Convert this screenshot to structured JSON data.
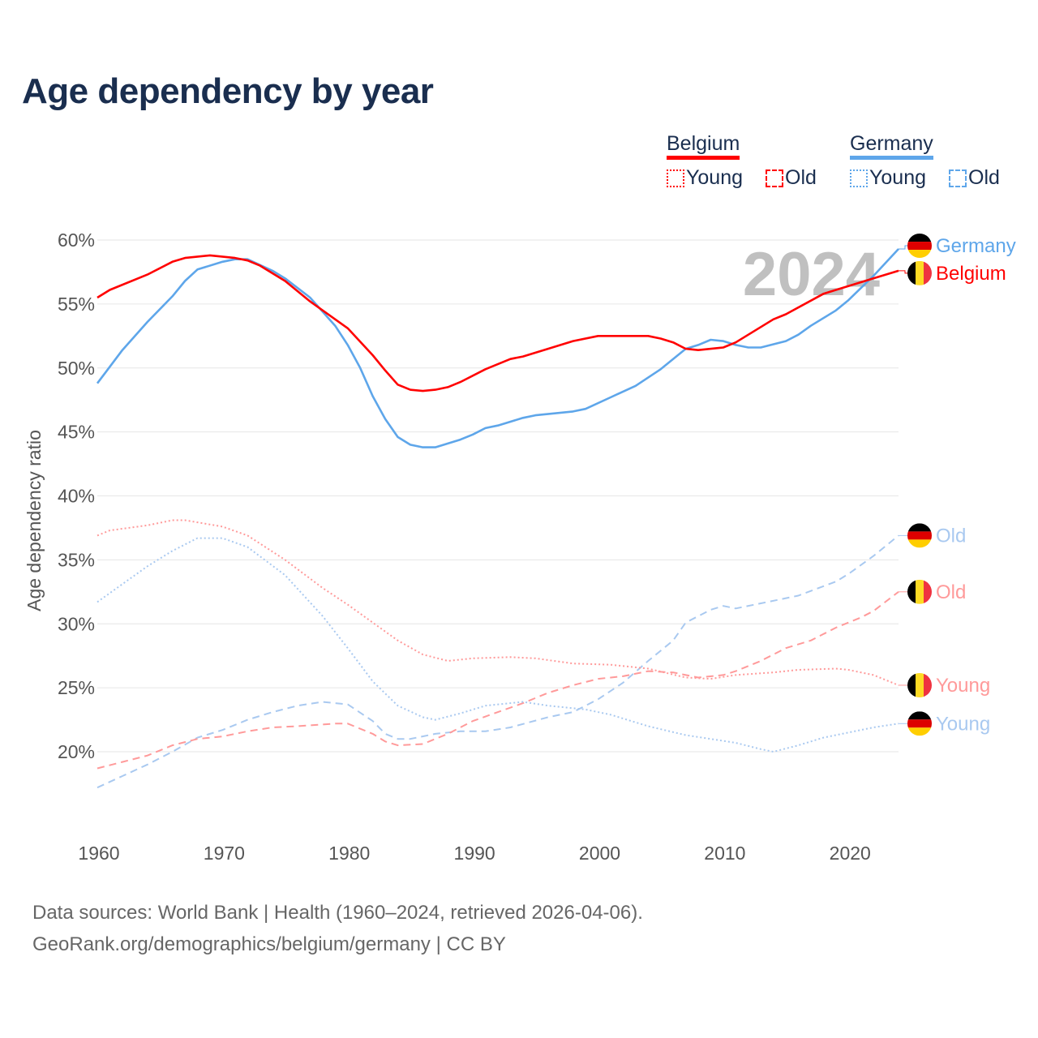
{
  "title": "Age dependency by year",
  "legend": {
    "groups": [
      {
        "name": "Belgium",
        "color": "#ff0000",
        "items": [
          {
            "label": "Young",
            "style": "dotted"
          },
          {
            "label": "Old",
            "style": "dashed"
          }
        ]
      },
      {
        "name": "Germany",
        "color": "#5ea6ea",
        "items": [
          {
            "label": "Young",
            "style": "dotted"
          },
          {
            "label": "Old",
            "style": "dashed"
          }
        ]
      }
    ]
  },
  "year_watermark": "2024",
  "footer": {
    "line1": "Data sources: World Bank | Health (1960–2024, retrieved 2026-04-06).",
    "line2": "GeoRank.org/demographics/belgium/germany | CC BY"
  },
  "chart_data": {
    "type": "line",
    "title": "Age dependency by year",
    "xlabel": "",
    "ylabel": "Age dependency ratio",
    "xlim": [
      1960,
      2024
    ],
    "ylim": [
      15,
      60
    ],
    "xticks": [
      1960,
      1970,
      1980,
      1990,
      2000,
      2010,
      2020
    ],
    "yticks": [
      20,
      25,
      30,
      35,
      40,
      45,
      50,
      55,
      60
    ],
    "ytick_suffix": "%",
    "grid": true,
    "series": [
      {
        "name": "Germany",
        "label": "Germany",
        "country": "de",
        "color": "#5ea6ea",
        "style": "solid",
        "points": [
          [
            1960,
            48.8
          ],
          [
            1962,
            51.4
          ],
          [
            1964,
            53.6
          ],
          [
            1966,
            55.6
          ],
          [
            1967,
            56.8
          ],
          [
            1968,
            57.7
          ],
          [
            1970,
            58.3
          ],
          [
            1971,
            58.5
          ],
          [
            1972,
            58.5
          ],
          [
            1974,
            57.6
          ],
          [
            1975,
            57.0
          ],
          [
            1977,
            55.5
          ],
          [
            1979,
            53.3
          ],
          [
            1980,
            51.8
          ],
          [
            1981,
            50.0
          ],
          [
            1982,
            47.8
          ],
          [
            1983,
            46.0
          ],
          [
            1984,
            44.6
          ],
          [
            1985,
            44.0
          ],
          [
            1986,
            43.8
          ],
          [
            1987,
            43.8
          ],
          [
            1989,
            44.4
          ],
          [
            1990,
            44.8
          ],
          [
            1991,
            45.3
          ],
          [
            1992,
            45.5
          ],
          [
            1994,
            46.1
          ],
          [
            1995,
            46.3
          ],
          [
            1998,
            46.6
          ],
          [
            1999,
            46.8
          ],
          [
            2001,
            47.7
          ],
          [
            2003,
            48.6
          ],
          [
            2005,
            49.9
          ],
          [
            2007,
            51.5
          ],
          [
            2008,
            51.8
          ],
          [
            2009,
            52.2
          ],
          [
            2010,
            52.1
          ],
          [
            2011,
            51.8
          ],
          [
            2012,
            51.6
          ],
          [
            2013,
            51.6
          ],
          [
            2015,
            52.1
          ],
          [
            2016,
            52.6
          ],
          [
            2017,
            53.3
          ],
          [
            2019,
            54.5
          ],
          [
            2020,
            55.3
          ],
          [
            2022,
            57.2
          ],
          [
            2024,
            59.3
          ]
        ]
      },
      {
        "name": "Belgium",
        "label": "Belgium",
        "country": "be",
        "color": "#ff0000",
        "style": "solid",
        "points": [
          [
            1960,
            55.5
          ],
          [
            1961,
            56.1
          ],
          [
            1964,
            57.3
          ],
          [
            1966,
            58.3
          ],
          [
            1967,
            58.6
          ],
          [
            1969,
            58.8
          ],
          [
            1971,
            58.6
          ],
          [
            1972,
            58.4
          ],
          [
            1973,
            58.0
          ],
          [
            1975,
            56.8
          ],
          [
            1977,
            55.2
          ],
          [
            1980,
            53.1
          ],
          [
            1982,
            51.0
          ],
          [
            1983,
            49.8
          ],
          [
            1984,
            48.7
          ],
          [
            1985,
            48.3
          ],
          [
            1986,
            48.2
          ],
          [
            1987,
            48.3
          ],
          [
            1988,
            48.5
          ],
          [
            1989,
            48.9
          ],
          [
            1991,
            49.9
          ],
          [
            1993,
            50.7
          ],
          [
            1994,
            50.9
          ],
          [
            1996,
            51.5
          ],
          [
            1998,
            52.1
          ],
          [
            2000,
            52.5
          ],
          [
            2004,
            52.5
          ],
          [
            2005,
            52.3
          ],
          [
            2006,
            52.0
          ],
          [
            2007,
            51.5
          ],
          [
            2008,
            51.4
          ],
          [
            2010,
            51.6
          ],
          [
            2011,
            52.0
          ],
          [
            2014,
            53.8
          ],
          [
            2015,
            54.2
          ],
          [
            2018,
            55.8
          ],
          [
            2019,
            56.1
          ],
          [
            2022,
            57.0
          ],
          [
            2024,
            57.6
          ]
        ]
      },
      {
        "name": "Germany Old",
        "label": "Old",
        "country": "de",
        "color": "#a9c9f0",
        "style": "dashed",
        "points": [
          [
            1960,
            17.2
          ],
          [
            1962,
            18.1
          ],
          [
            1964,
            19.0
          ],
          [
            1966,
            20.0
          ],
          [
            1968,
            21.1
          ],
          [
            1970,
            21.7
          ],
          [
            1972,
            22.5
          ],
          [
            1974,
            23.1
          ],
          [
            1976,
            23.6
          ],
          [
            1978,
            23.9
          ],
          [
            1980,
            23.7
          ],
          [
            1982,
            22.4
          ],
          [
            1983,
            21.4
          ],
          [
            1984,
            21.0
          ],
          [
            1985,
            21.0
          ],
          [
            1987,
            21.4
          ],
          [
            1989,
            21.6
          ],
          [
            1991,
            21.6
          ],
          [
            1993,
            21.9
          ],
          [
            1996,
            22.7
          ],
          [
            1998,
            23.1
          ],
          [
            2000,
            24.1
          ],
          [
            2002,
            25.4
          ],
          [
            2004,
            27.1
          ],
          [
            2006,
            28.7
          ],
          [
            2007,
            30.1
          ],
          [
            2009,
            31.1
          ],
          [
            2010,
            31.4
          ],
          [
            2011,
            31.2
          ],
          [
            2013,
            31.6
          ],
          [
            2016,
            32.2
          ],
          [
            2019,
            33.3
          ],
          [
            2020,
            33.9
          ],
          [
            2022,
            35.3
          ],
          [
            2024,
            36.9
          ]
        ]
      },
      {
        "name": "Belgium Old",
        "label": "Old",
        "country": "be",
        "color": "#ff9a9a",
        "style": "dashed",
        "points": [
          [
            1960,
            18.7
          ],
          [
            1962,
            19.2
          ],
          [
            1964,
            19.7
          ],
          [
            1966,
            20.5
          ],
          [
            1968,
            21.0
          ],
          [
            1970,
            21.2
          ],
          [
            1972,
            21.6
          ],
          [
            1974,
            21.9
          ],
          [
            1976,
            22.0
          ],
          [
            1979,
            22.2
          ],
          [
            1980,
            22.2
          ],
          [
            1982,
            21.4
          ],
          [
            1983,
            20.8
          ],
          [
            1984,
            20.5
          ],
          [
            1986,
            20.6
          ],
          [
            1988,
            21.4
          ],
          [
            1990,
            22.4
          ],
          [
            1992,
            23.1
          ],
          [
            1994,
            23.8
          ],
          [
            1996,
            24.6
          ],
          [
            1998,
            25.2
          ],
          [
            2000,
            25.7
          ],
          [
            2002,
            25.9
          ],
          [
            2004,
            26.3
          ],
          [
            2006,
            26.2
          ],
          [
            2008,
            25.8
          ],
          [
            2010,
            26.0
          ],
          [
            2011,
            26.3
          ],
          [
            2013,
            27.1
          ],
          [
            2015,
            28.1
          ],
          [
            2017,
            28.7
          ],
          [
            2019,
            29.7
          ],
          [
            2021,
            30.5
          ],
          [
            2022,
            31.0
          ],
          [
            2024,
            32.5
          ]
        ]
      },
      {
        "name": "Belgium Young",
        "label": "Young",
        "country": "be",
        "color": "#ff9a9a",
        "style": "dotted",
        "points": [
          [
            1960,
            36.9
          ],
          [
            1961,
            37.3
          ],
          [
            1964,
            37.7
          ],
          [
            1966,
            38.1
          ],
          [
            1967,
            38.1
          ],
          [
            1970,
            37.6
          ],
          [
            1972,
            36.9
          ],
          [
            1975,
            35.0
          ],
          [
            1978,
            32.8
          ],
          [
            1980,
            31.5
          ],
          [
            1982,
            30.1
          ],
          [
            1984,
            28.7
          ],
          [
            1986,
            27.6
          ],
          [
            1988,
            27.1
          ],
          [
            1990,
            27.3
          ],
          [
            1993,
            27.4
          ],
          [
            1995,
            27.3
          ],
          [
            1998,
            26.9
          ],
          [
            2001,
            26.8
          ],
          [
            2004,
            26.5
          ],
          [
            2007,
            25.8
          ],
          [
            2009,
            25.7
          ],
          [
            2011,
            26.0
          ],
          [
            2014,
            26.2
          ],
          [
            2016,
            26.4
          ],
          [
            2019,
            26.5
          ],
          [
            2020,
            26.4
          ],
          [
            2022,
            26.0
          ],
          [
            2024,
            25.2
          ]
        ]
      },
      {
        "name": "Germany Young",
        "label": "Young",
        "country": "de",
        "color": "#a9c9f0",
        "style": "dotted",
        "points": [
          [
            1960,
            31.7
          ],
          [
            1962,
            33.1
          ],
          [
            1964,
            34.5
          ],
          [
            1966,
            35.7
          ],
          [
            1968,
            36.7
          ],
          [
            1970,
            36.7
          ],
          [
            1972,
            36.0
          ],
          [
            1975,
            33.8
          ],
          [
            1978,
            30.6
          ],
          [
            1980,
            28.1
          ],
          [
            1982,
            25.5
          ],
          [
            1984,
            23.6
          ],
          [
            1986,
            22.7
          ],
          [
            1987,
            22.5
          ],
          [
            1989,
            23.0
          ],
          [
            1991,
            23.6
          ],
          [
            1994,
            23.9
          ],
          [
            1996,
            23.6
          ],
          [
            1999,
            23.3
          ],
          [
            2001,
            22.9
          ],
          [
            2004,
            22.0
          ],
          [
            2007,
            21.3
          ],
          [
            2009,
            21.0
          ],
          [
            2011,
            20.7
          ],
          [
            2013,
            20.2
          ],
          [
            2014,
            20.0
          ],
          [
            2016,
            20.5
          ],
          [
            2018,
            21.1
          ],
          [
            2020,
            21.5
          ],
          [
            2022,
            21.9
          ],
          [
            2024,
            22.2
          ]
        ]
      }
    ]
  }
}
